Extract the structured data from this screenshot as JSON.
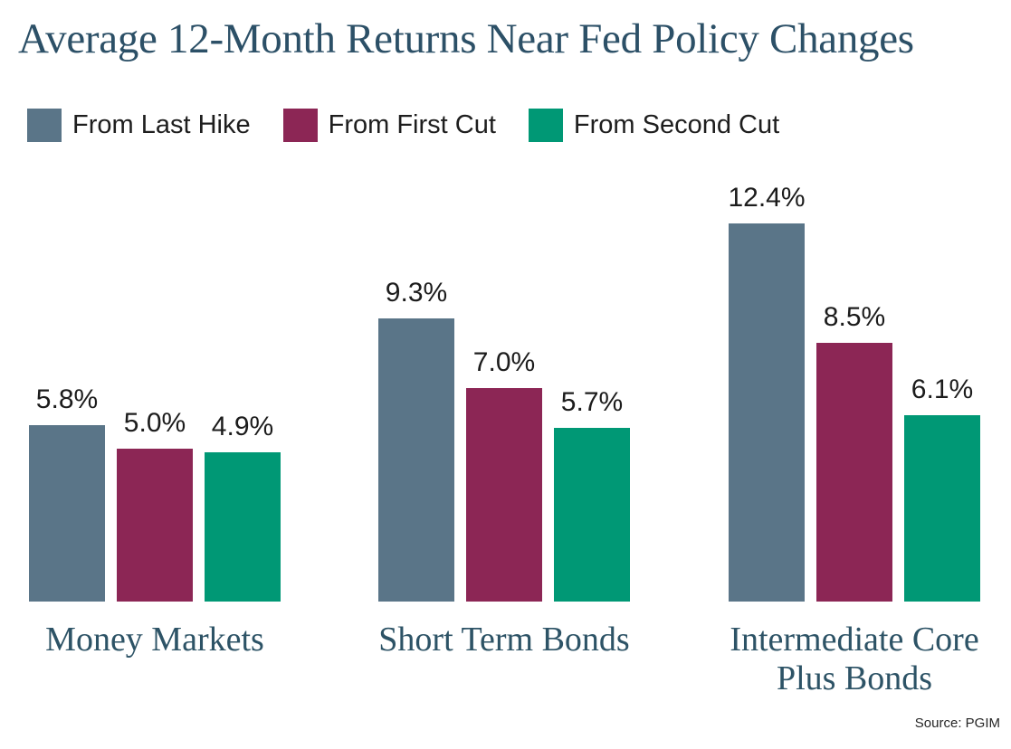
{
  "title": "Average 12-Month Returns Near Fed Policy Changes",
  "source": "Source: PGIM",
  "colors": {
    "background": "#FFFFFF",
    "title_text": "#2C5067",
    "category_text": "#2D5366",
    "value_label_text": "#1C1C1C",
    "legend_text": "#1E1E1E",
    "from_last_hike": "#5A7588",
    "from_first_cut": "#8C2655",
    "from_second_cut": "#009875"
  },
  "legend": [
    {
      "label": "From Last Hike",
      "color": "#5A7588"
    },
    {
      "label": "From First Cut",
      "color": "#8C2655"
    },
    {
      "label": "From Second Cut",
      "color": "#009875"
    }
  ],
  "chart_data": {
    "type": "bar",
    "title": "Average 12-Month Returns Near Fed Policy Changes",
    "categories": [
      "Money Markets",
      "Short Term Bonds",
      "Intermediate Core Plus Bonds"
    ],
    "category_lines": [
      [
        "Money Markets"
      ],
      [
        "Short Term Bonds"
      ],
      [
        "Intermediate Core",
        "Plus Bonds"
      ]
    ],
    "series": [
      {
        "name": "From Last Hike",
        "color": "#5A7588",
        "values": [
          5.8,
          9.3,
          12.4
        ],
        "labels": [
          "5.8%",
          "9.3%",
          "12.4%"
        ]
      },
      {
        "name": "From First Cut",
        "color": "#8C2655",
        "values": [
          5.0,
          7.0,
          8.5
        ],
        "labels": [
          "5.0%",
          "7.0%",
          "8.5%"
        ]
      },
      {
        "name": "From Second Cut",
        "color": "#009875",
        "values": [
          4.9,
          5.7,
          6.1
        ],
        "labels": [
          "4.9%",
          "5.7%",
          "6.1%"
        ]
      }
    ],
    "unit": "%",
    "ylim": [
      0,
      14
    ],
    "grid": false,
    "value_labels_shown": true,
    "legend_position": "top-left",
    "source": "Source: PGIM"
  }
}
